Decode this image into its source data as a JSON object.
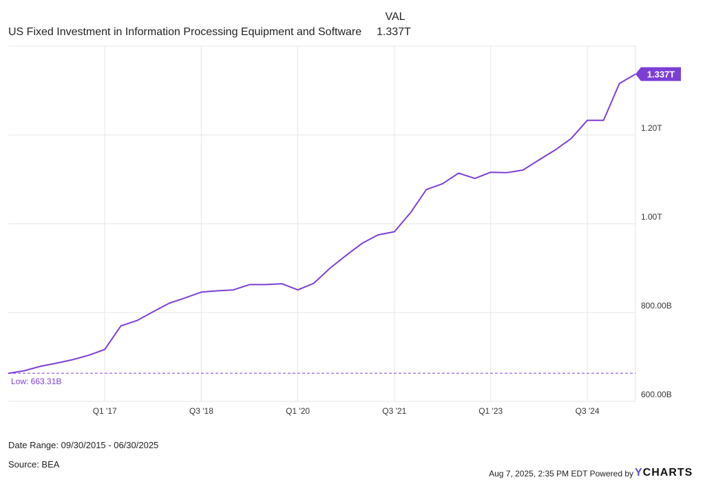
{
  "header": {
    "column_label": "VAL",
    "series_name": "US Fixed Investment in Information Processing Equipment and Software",
    "series_value": "1.337T"
  },
  "footer": {
    "date_range": "Date Range: 09/30/2015 - 06/30/2025",
    "source": "Source: BEA",
    "timestamp": "Aug 7, 2025, 2:35 PM EDT Powered by",
    "brand_prefix": "Y",
    "brand_rest": "CHARTS"
  },
  "colors": {
    "line": "#7b3fd6",
    "grid": "#e6e6e6",
    "low_line": "#7b3fd6"
  },
  "chart_data": {
    "type": "line",
    "x": [
      "2015-09-30",
      "2015-12-31",
      "2016-03-31",
      "2016-06-30",
      "2016-09-30",
      "2016-12-31",
      "2017-03-31",
      "2017-06-30",
      "2017-09-30",
      "2017-12-31",
      "2018-03-31",
      "2018-06-30",
      "2018-09-30",
      "2018-12-31",
      "2019-03-31",
      "2019-06-30",
      "2019-09-30",
      "2019-12-31",
      "2020-03-31",
      "2020-06-30",
      "2020-09-30",
      "2020-12-31",
      "2021-03-31",
      "2021-06-30",
      "2021-09-30",
      "2021-12-31",
      "2022-03-31",
      "2022-06-30",
      "2022-09-30",
      "2022-12-31",
      "2023-03-31",
      "2023-06-30",
      "2023-09-30",
      "2023-12-31",
      "2024-03-31",
      "2024-06-30",
      "2024-09-30",
      "2024-12-31",
      "2025-03-31",
      "2025-06-30"
    ],
    "series": [
      {
        "values": [
          663.31,
          669,
          679,
          686,
          694,
          704,
          717,
          770,
          782,
          802,
          821,
          833,
          846,
          849,
          851,
          863,
          863,
          865,
          851,
          866,
          900,
          929,
          956,
          975,
          982,
          1025,
          1077,
          1090,
          1114,
          1102,
          1116,
          1115,
          1121,
          1144,
          1166,
          1192,
          1233,
          1233,
          1316,
          1337
        ]
      }
    ],
    "x_ticks": [
      "Q1 '17",
      "Q3 '18",
      "Q1 '20",
      "Q3 '21",
      "Q1 '23",
      "Q3 '24"
    ],
    "x_tick_dates": [
      "2017-03-31",
      "2018-09-30",
      "2020-03-31",
      "2021-09-30",
      "2023-03-31",
      "2024-09-30"
    ],
    "y_ticks": [
      {
        "value": 600,
        "label": "600.00B"
      },
      {
        "value": 800,
        "label": "800.00B"
      },
      {
        "value": 1000,
        "label": "1.00T"
      },
      {
        "value": 1200,
        "label": "1.20T"
      }
    ],
    "ylim": [
      600,
      1400
    ],
    "xlim": [
      "2015-09-30",
      "2025-06-30"
    ],
    "grid": true,
    "low_label": "Low: 663.31B",
    "low_value": 663.31,
    "last_label": "1.337T"
  }
}
